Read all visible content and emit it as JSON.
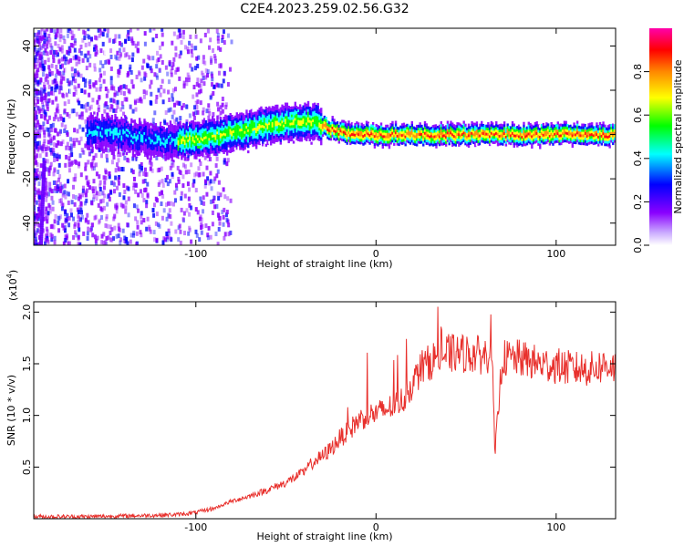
{
  "title": "C2E4.2023.259.02.56.G32",
  "chart_data": [
    {
      "type": "heatmap",
      "xlabel": "Height of straight line (km)",
      "ylabel": "Frequency (Hz)",
      "xlim": [
        -190,
        133
      ],
      "ylim": [
        -50,
        48
      ],
      "x_ticks": [
        -100,
        0,
        100
      ],
      "x_tick_labels": [
        "-100",
        "0",
        "100"
      ],
      "y_ticks": [
        -40,
        -20,
        0,
        20,
        40
      ],
      "y_tick_labels": [
        "-40",
        "-20",
        "0",
        "20",
        "40"
      ],
      "colorbar": {
        "label": "Normalized spectral amplitude",
        "range": [
          0,
          1
        ],
        "ticks": [
          0.0,
          0.2,
          0.4,
          0.6,
          0.8
        ],
        "tick_labels": [
          "0.0",
          "0.2",
          "0.4",
          "0.6",
          "0.8"
        ],
        "colors": [
          "#ffffff",
          "#8a00ff",
          "#0000ff",
          "#00ffff",
          "#00ff00",
          "#ffff00",
          "#ff8800",
          "#ff0000",
          "#ff00aa"
        ]
      },
      "ridge": {
        "x": [
          -150,
          -140,
          -130,
          -120,
          -110,
          -100,
          -90,
          -80,
          -70,
          -60,
          -50,
          -40,
          -35,
          -30,
          -20,
          -10,
          0,
          10,
          20,
          40,
          60,
          80,
          100,
          120,
          133
        ],
        "y": [
          1,
          0,
          -2,
          -3,
          -3,
          -2,
          -1,
          1,
          2,
          4,
          5,
          6,
          6,
          4,
          1,
          0,
          0,
          0,
          0,
          0,
          0,
          0,
          0,
          0,
          0
        ]
      }
    },
    {
      "type": "line",
      "xlabel": "Height of straight line (km)",
      "ylabel": "SNR (10 * v/v)",
      "y_multiplier": "(x10",
      "y_multiplier_exp": "4",
      "y_multiplier_close": ")",
      "xlim": [
        -190,
        133
      ],
      "ylim": [
        0,
        2.1
      ],
      "x_ticks": [
        -100,
        0,
        100
      ],
      "x_tick_labels": [
        "-100",
        "0",
        "100"
      ],
      "y_ticks": [
        0.5,
        1.0,
        1.5,
        2.0
      ],
      "y_tick_labels": [
        "0.5",
        "1.0",
        "1.5",
        "2.0"
      ],
      "series": [
        {
          "color": "#e8302c",
          "x": [
            -190,
            -160,
            -130,
            -110,
            -100,
            -90,
            -80,
            -70,
            -60,
            -50,
            -40,
            -35,
            -30,
            -25,
            -20,
            -15,
            -10,
            -5,
            0,
            5,
            10,
            15,
            20,
            25,
            30,
            35,
            40,
            50,
            60,
            62,
            64,
            66,
            70,
            80,
            90,
            100,
            110,
            120,
            130,
            133
          ],
          "y": [
            0.02,
            0.02,
            0.03,
            0.04,
            0.06,
            0.1,
            0.17,
            0.22,
            0.28,
            0.35,
            0.45,
            0.55,
            0.6,
            0.68,
            0.78,
            0.85,
            0.95,
            1.0,
            1.02,
            1.05,
            1.1,
            1.15,
            1.3,
            1.45,
            1.52,
            1.58,
            1.6,
            1.6,
            1.58,
            1.6,
            1.8,
            0.6,
            1.55,
            1.55,
            1.5,
            1.48,
            1.45,
            1.45,
            1.5,
            1.45
          ]
        }
      ]
    }
  ]
}
